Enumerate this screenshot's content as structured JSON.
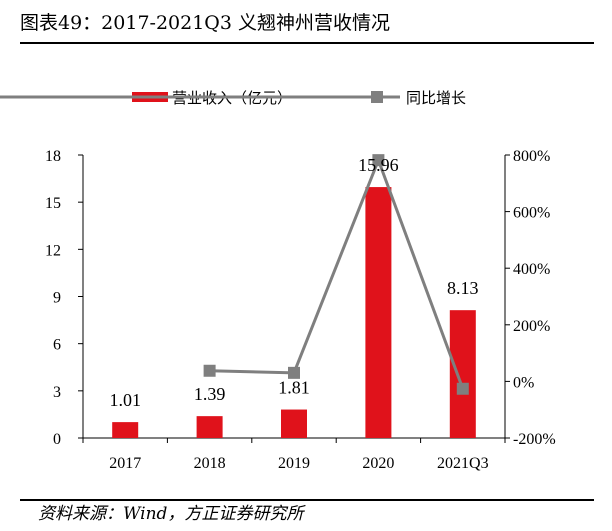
{
  "title": "图表49：2017-2021Q3 义翘神州营收情况",
  "source": "资料来源：Wind，方正证券研究所",
  "chart_data": {
    "type": "bar",
    "categories": [
      "2017",
      "2018",
      "2019",
      "2020",
      "2021Q3"
    ],
    "series": [
      {
        "name": "营业收入（亿元）",
        "type": "bar",
        "axis": "left",
        "values": [
          1.01,
          1.39,
          1.81,
          15.96,
          8.13
        ],
        "color": "#e0121b"
      },
      {
        "name": "同比增长",
        "type": "line",
        "axis": "right",
        "values": [
          null,
          37.6,
          30.2,
          781.8,
          -26.0
        ],
        "color": "#7f7f7f"
      }
    ],
    "data_labels": [
      "1.01",
      "1.39",
      "1.81",
      "15.96",
      "8.13"
    ],
    "y_left": {
      "min": 0,
      "max": 18,
      "ticks": [
        "0",
        "3",
        "6",
        "9",
        "12",
        "15",
        "18"
      ]
    },
    "y_right": {
      "min": -200,
      "max": 800,
      "ticks": [
        "-200%",
        "0%",
        "200%",
        "400%",
        "600%",
        "800%"
      ]
    },
    "legend_position": "top",
    "grid": false
  }
}
